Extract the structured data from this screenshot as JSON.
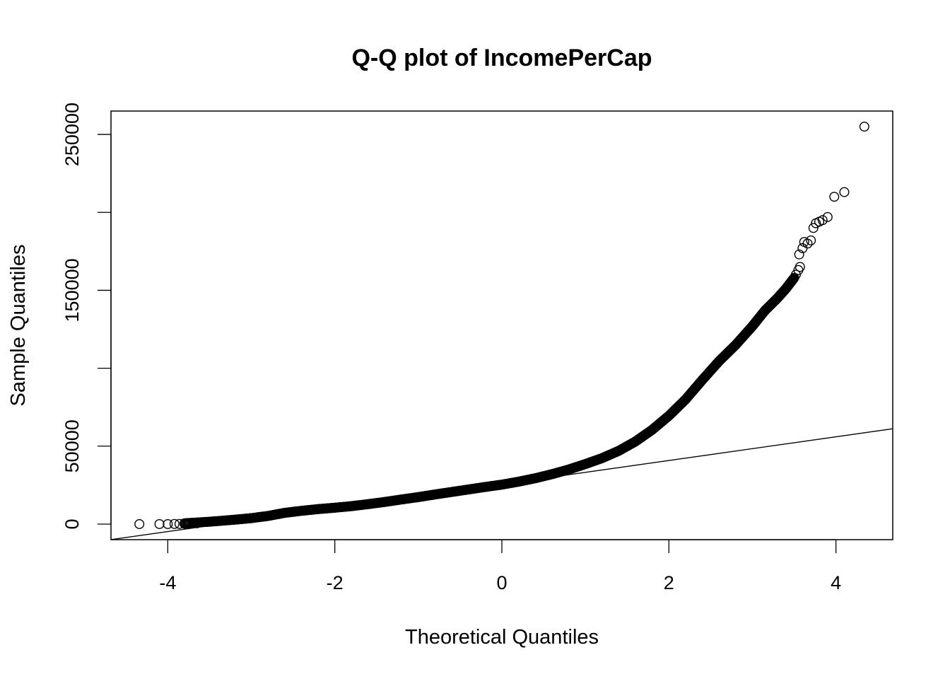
{
  "chart_data": {
    "type": "scatter",
    "title": "Q-Q plot of IncomePerCap",
    "xlabel": "Theoretical Quantiles",
    "ylabel": "Sample Quantiles",
    "xlim": [
      -4.68,
      4.68
    ],
    "ylim": [
      -10000,
      265000
    ],
    "x_ticks": [
      -4,
      -2,
      0,
      2,
      4
    ],
    "x_tick_labels": [
      "-4",
      "-2",
      "0",
      "2",
      "4"
    ],
    "y_ticks": [
      0,
      50000,
      100000,
      150000,
      200000,
      250000
    ],
    "y_tick_labels": [
      "0",
      "50000",
      "",
      "150000",
      "",
      "250000"
    ],
    "grid": false,
    "legend": "none",
    "marker": "open-circle",
    "reference_line": {
      "slope": 7600,
      "intercept": 25600
    },
    "sample_curve": [
      [
        -3.8,
        500
      ],
      [
        -3.5,
        1500
      ],
      [
        -3.2,
        2800
      ],
      [
        -3.0,
        3800
      ],
      [
        -2.8,
        5200
      ],
      [
        -2.6,
        7200
      ],
      [
        -2.4,
        8500
      ],
      [
        -2.2,
        9600
      ],
      [
        -2.0,
        10500
      ],
      [
        -1.8,
        11500
      ],
      [
        -1.6,
        12800
      ],
      [
        -1.4,
        14200
      ],
      [
        -1.2,
        15800
      ],
      [
        -1.0,
        17300
      ],
      [
        -0.8,
        19000
      ],
      [
        -0.6,
        20600
      ],
      [
        -0.4,
        22200
      ],
      [
        -0.2,
        23800
      ],
      [
        0.0,
        25300
      ],
      [
        0.2,
        27200
      ],
      [
        0.4,
        29400
      ],
      [
        0.6,
        32000
      ],
      [
        0.8,
        35000
      ],
      [
        1.0,
        38500
      ],
      [
        1.2,
        42300
      ],
      [
        1.4,
        47000
      ],
      [
        1.6,
        53000
      ],
      [
        1.8,
        60500
      ],
      [
        2.0,
        69500
      ],
      [
        2.2,
        80000
      ],
      [
        2.4,
        92500
      ],
      [
        2.6,
        104500
      ],
      [
        2.8,
        115000
      ],
      [
        3.0,
        127000
      ],
      [
        3.15,
        137000
      ],
      [
        3.3,
        145000
      ],
      [
        3.4,
        151000
      ],
      [
        3.5,
        158000
      ]
    ],
    "tail_points": [
      [
        -4.34,
        0
      ],
      [
        -4.1,
        0
      ],
      [
        -4.0,
        0
      ],
      [
        -3.92,
        100
      ],
      [
        -3.86,
        100
      ],
      [
        -3.8,
        200
      ],
      [
        -3.75,
        300
      ],
      [
        -3.7,
        400
      ],
      [
        -3.65,
        500
      ],
      [
        3.52,
        160000
      ],
      [
        3.55,
        163000
      ],
      [
        3.57,
        165000
      ],
      [
        3.56,
        173000
      ],
      [
        3.6,
        177000
      ],
      [
        3.62,
        181000
      ],
      [
        3.66,
        180000
      ],
      [
        3.7,
        182000
      ],
      [
        3.73,
        190000
      ],
      [
        3.76,
        193000
      ],
      [
        3.8,
        194000
      ],
      [
        3.84,
        195000
      ],
      [
        3.9,
        197000
      ],
      [
        3.98,
        210000
      ],
      [
        4.1,
        213000
      ],
      [
        4.34,
        255000
      ]
    ]
  }
}
